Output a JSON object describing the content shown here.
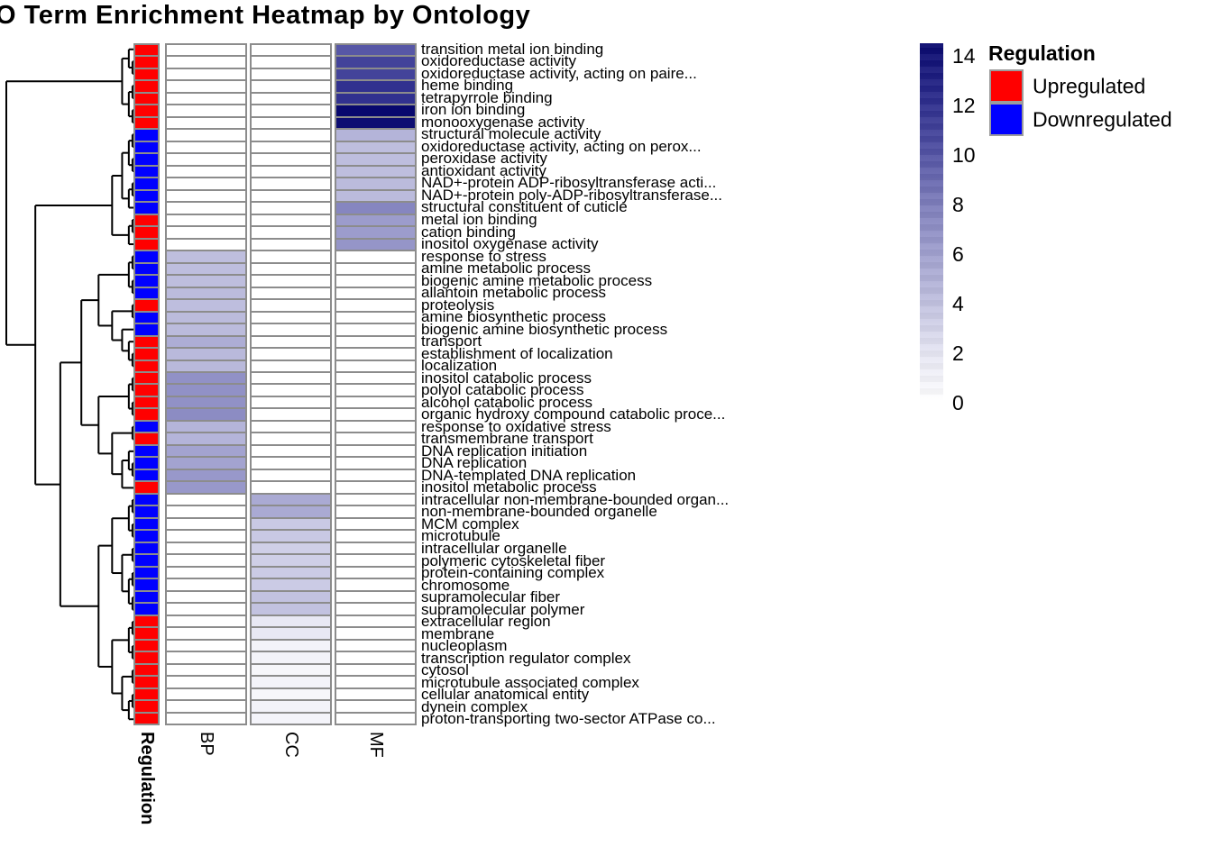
{
  "chart_data": {
    "type": "heatmap",
    "title": "GO Term Enrichment Heatmap by Ontology",
    "columns": [
      "BP",
      "CC",
      "MF"
    ],
    "row_annotation": {
      "title": "Regulation",
      "colors": {
        "Upregulated": "#ff0000",
        "Downregulated": "#0000ff"
      }
    },
    "colorscale": {
      "min": 0,
      "max": 14,
      "ticks": [
        14,
        12,
        10,
        8,
        6,
        4,
        2,
        0
      ],
      "gradient": [
        {
          "value": 0,
          "color": "#ffffff"
        },
        {
          "value": 2,
          "color": "#e4e4f2"
        },
        {
          "value": 4,
          "color": "#bebede"
        },
        {
          "value": 6,
          "color": "#9c9ccc"
        },
        {
          "value": 8,
          "color": "#7878b8"
        },
        {
          "value": 10,
          "color": "#4c4ca0"
        },
        {
          "value": 12,
          "color": "#282889"
        },
        {
          "value": 14,
          "color": "#08086e"
        }
      ]
    },
    "rows": [
      {
        "label": "transition metal ion binding",
        "regulation": "Upregulated",
        "ontology": "MF",
        "value": 9.5
      },
      {
        "label": "oxidoreductase activity",
        "regulation": "Upregulated",
        "ontology": "MF",
        "value": 10.5
      },
      {
        "label": "oxidoreductase activity, acting on paire...",
        "regulation": "Upregulated",
        "ontology": "MF",
        "value": 10.5
      },
      {
        "label": "heme binding",
        "regulation": "Upregulated",
        "ontology": "MF",
        "value": 11.5
      },
      {
        "label": "tetrapyrrole binding",
        "regulation": "Upregulated",
        "ontology": "MF",
        "value": 11.5
      },
      {
        "label": "iron ion binding",
        "regulation": "Upregulated",
        "ontology": "MF",
        "value": 14
      },
      {
        "label": "monooxygenase activity",
        "regulation": "Upregulated",
        "ontology": "MF",
        "value": 13.7
      },
      {
        "label": "structural molecule activity",
        "regulation": "Downregulated",
        "ontology": "MF",
        "value": 4.6
      },
      {
        "label": "oxidoreductase activity, acting on perox...",
        "regulation": "Downregulated",
        "ontology": "MF",
        "value": 4
      },
      {
        "label": "peroxidase activity",
        "regulation": "Downregulated",
        "ontology": "MF",
        "value": 4
      },
      {
        "label": "antioxidant activity",
        "regulation": "Downregulated",
        "ontology": "MF",
        "value": 4
      },
      {
        "label": "NAD+-protein ADP-ribosyltransferase acti...",
        "regulation": "Downregulated",
        "ontology": "MF",
        "value": 4.2
      },
      {
        "label": "NAD+-protein poly-ADP-ribosyltransferase...",
        "regulation": "Downregulated",
        "ontology": "MF",
        "value": 4.2
      },
      {
        "label": "structural constituent of cuticle",
        "regulation": "Downregulated",
        "ontology": "MF",
        "value": 7.2
      },
      {
        "label": "metal ion binding",
        "regulation": "Upregulated",
        "ontology": "MF",
        "value": 6
      },
      {
        "label": "cation binding",
        "regulation": "Upregulated",
        "ontology": "MF",
        "value": 6
      },
      {
        "label": "inositol oxygenase activity",
        "regulation": "Upregulated",
        "ontology": "MF",
        "value": 6.4
      },
      {
        "label": "response to stress",
        "regulation": "Downregulated",
        "ontology": "BP",
        "value": 4
      },
      {
        "label": "amine metabolic process",
        "regulation": "Downregulated",
        "ontology": "BP",
        "value": 4
      },
      {
        "label": "biogenic amine metabolic process",
        "regulation": "Downregulated",
        "ontology": "BP",
        "value": 4
      },
      {
        "label": "allantoin metabolic process",
        "regulation": "Downregulated",
        "ontology": "BP",
        "value": 4.2
      },
      {
        "label": "proteolysis",
        "regulation": "Upregulated",
        "ontology": "BP",
        "value": 4
      },
      {
        "label": "amine biosynthetic process",
        "regulation": "Downregulated",
        "ontology": "BP",
        "value": 4.2
      },
      {
        "label": "biogenic amine biosynthetic process",
        "regulation": "Downregulated",
        "ontology": "BP",
        "value": 4.2
      },
      {
        "label": "transport",
        "regulation": "Upregulated",
        "ontology": "BP",
        "value": 5
      },
      {
        "label": "establishment of localization",
        "regulation": "Upregulated",
        "ontology": "BP",
        "value": 4.3
      },
      {
        "label": "localization",
        "regulation": "Upregulated",
        "ontology": "BP",
        "value": 4.3
      },
      {
        "label": "inositol catabolic process",
        "regulation": "Upregulated",
        "ontology": "BP",
        "value": 6.6
      },
      {
        "label": "polyol catabolic process",
        "regulation": "Upregulated",
        "ontology": "BP",
        "value": 6.6
      },
      {
        "label": "alcohol catabolic process",
        "regulation": "Upregulated",
        "ontology": "BP",
        "value": 6.6
      },
      {
        "label": "organic hydroxy compound catabolic proce...",
        "regulation": "Upregulated",
        "ontology": "BP",
        "value": 6.9
      },
      {
        "label": "response to oxidative stress",
        "regulation": "Downregulated",
        "ontology": "BP",
        "value": 4.6
      },
      {
        "label": "transmembrane transport",
        "regulation": "Upregulated",
        "ontology": "BP",
        "value": 4.6
      },
      {
        "label": "DNA replication initiation",
        "regulation": "Downregulated",
        "ontology": "BP",
        "value": 5.6
      },
      {
        "label": "DNA replication",
        "regulation": "Downregulated",
        "ontology": "BP",
        "value": 5.6
      },
      {
        "label": "DNA-templated DNA replication",
        "regulation": "Downregulated",
        "ontology": "BP",
        "value": 6.2
      },
      {
        "label": "inositol metabolic process",
        "regulation": "Upregulated",
        "ontology": "BP",
        "value": 6.2
      },
      {
        "label": "intracellular non-membrane-bounded organ...",
        "regulation": "Downregulated",
        "ontology": "CC",
        "value": 5.2
      },
      {
        "label": "non-membrane-bounded organelle",
        "regulation": "Downregulated",
        "ontology": "CC",
        "value": 5.2
      },
      {
        "label": "MCM complex",
        "regulation": "Downregulated",
        "ontology": "CC",
        "value": 3.4
      },
      {
        "label": "microtubule",
        "regulation": "Downregulated",
        "ontology": "CC",
        "value": 3.4
      },
      {
        "label": "intracellular organelle",
        "regulation": "Downregulated",
        "ontology": "CC",
        "value": 3.1
      },
      {
        "label": "polymeric cytoskeletal fiber",
        "regulation": "Downregulated",
        "ontology": "CC",
        "value": 3.1
      },
      {
        "label": "protein-containing complex",
        "regulation": "Downregulated",
        "ontology": "CC",
        "value": 3.3
      },
      {
        "label": "chromosome",
        "regulation": "Downregulated",
        "ontology": "CC",
        "value": 3.3
      },
      {
        "label": "supramolecular fiber",
        "regulation": "Downregulated",
        "ontology": "CC",
        "value": 3.8
      },
      {
        "label": "supramolecular polymer",
        "regulation": "Downregulated",
        "ontology": "CC",
        "value": 3.8
      },
      {
        "label": "extracellular region",
        "regulation": "Upregulated",
        "ontology": "CC",
        "value": 1.7
      },
      {
        "label": "membrane",
        "regulation": "Upregulated",
        "ontology": "CC",
        "value": 1.7
      },
      {
        "label": "nucleoplasm",
        "regulation": "Upregulated",
        "ontology": "CC",
        "value": 0.9
      },
      {
        "label": "transcription regulator complex",
        "regulation": "Upregulated",
        "ontology": "CC",
        "value": 0.9
      },
      {
        "label": "cytosol",
        "regulation": "Upregulated",
        "ontology": "CC",
        "value": 0.7
      },
      {
        "label": "microtubule associated complex",
        "regulation": "Upregulated",
        "ontology": "CC",
        "value": 0.9
      },
      {
        "label": "cellular anatomical entity",
        "regulation": "Upregulated",
        "ontology": "CC",
        "value": 0.7
      },
      {
        "label": "dynein complex",
        "regulation": "Upregulated",
        "ontology": "CC",
        "value": 0.9
      },
      {
        "label": "proton-transporting two-sector ATPase co...",
        "regulation": "Upregulated",
        "ontology": "CC",
        "value": 0.8
      }
    ],
    "row_dendrogram": [
      [
        [
          1,
          [
            2,
            3
          ]
        ],
        [
          [
            4,
            5
          ],
          [
            6,
            7
          ]
        ]
      ],
      [
        [
          [
            [
              [
                8,
                9
              ],
              [
                10,
                11
              ]
            ],
            [
              [
                12,
                13
              ],
              14
            ]
          ],
          [
            [
              15,
              16
            ],
            17
          ]
        ],
        [
          [
            [
              [
                [
                  18,
                  19
                ],
                [
                  20,
                  21
                ]
              ],
              [
                [
                  22,
                  23
                ],
                [
                  24,
                  [
                    25,
                    [
                      26,
                      27
                    ]
                  ]
                ]
              ]
            ],
            [
              [
                [
                  28,
                  29
                ],
                [
                  30,
                  31
                ]
              ],
              [
                [
                  32,
                  33
                ],
                [
                  [
                    34,
                    [
                      35,
                      36
                    ]
                  ],
                  37
                ]
              ]
            ]
          ],
          [
            [
              [
                [
                  38,
                  39
                ],
                [
                  40,
                  41
                ]
              ],
              [
                [
                  42,
                  43
                ],
                [
                  [
                    44,
                    45
                  ],
                  [
                    46,
                    47
                  ]
                ]
              ]
            ],
            [
              [
                [
                  48,
                  49
                ],
                [
                  50,
                  51
                ]
              ],
              [
                [
                  52,
                  53
                ],
                [
                  [
                    54,
                    55
                  ],
                  56
                ]
              ]
            ]
          ]
        ]
      ]
    ]
  },
  "legend": {
    "title": "Regulation",
    "entries": [
      {
        "label": "Upregulated",
        "color": "#ff0000"
      },
      {
        "label": "Downregulated",
        "color": "#0000ff"
      }
    ]
  }
}
